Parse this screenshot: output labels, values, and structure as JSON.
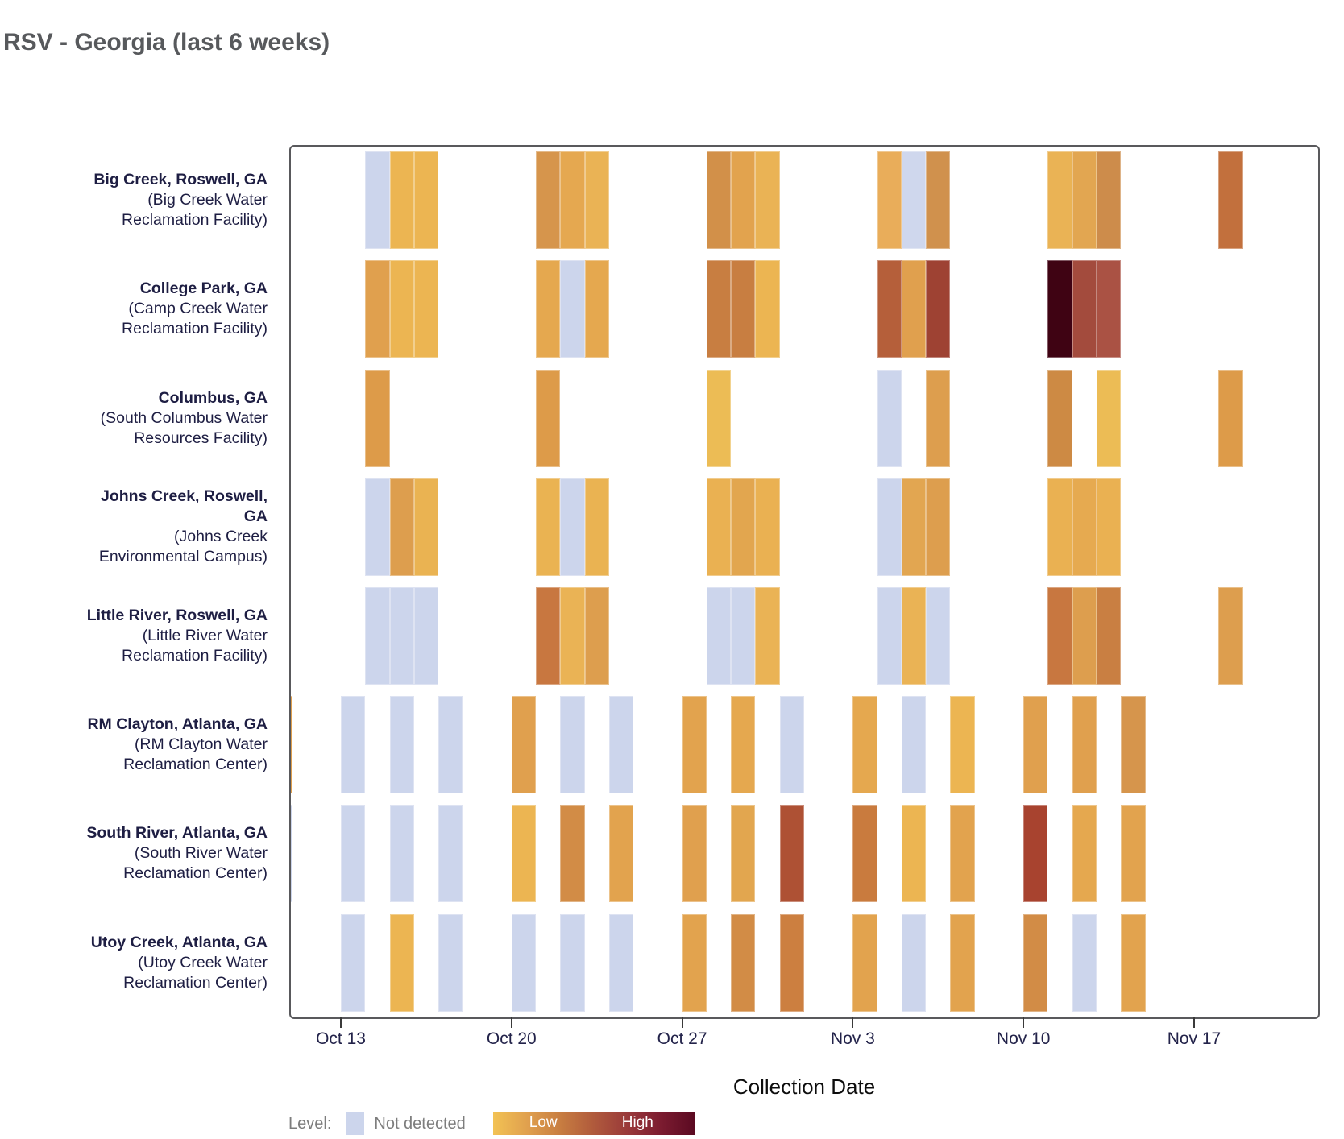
{
  "title": "RSV - Georgia (last 6 weeks)",
  "axis": {
    "x_title": "Collection Date",
    "x_ticks": [
      {
        "label": "Oct 13",
        "day": 0
      },
      {
        "label": "Oct 20",
        "day": 7
      },
      {
        "label": "Oct 27",
        "day": 14
      },
      {
        "label": "Nov 3",
        "day": 21
      },
      {
        "label": "Nov 10",
        "day": 28
      },
      {
        "label": "Nov 17",
        "day": 35
      }
    ]
  },
  "legend": {
    "label": "Level:",
    "not_detected_label": "Not detected",
    "not_detected_color": "#ccd5ec",
    "low_label": "Low",
    "high_label": "High",
    "gradient": [
      "#f2c254",
      "#e0a04e",
      "#c87e41",
      "#b05a3c",
      "#99393a",
      "#7c1c30",
      "#5b0a22"
    ]
  },
  "chart_data": {
    "type": "heatmap",
    "title": "RSV - Georgia (last 6 weeks)",
    "xlabel": "Collection Date",
    "x_range_days": [
      -2,
      40
    ],
    "grid": false,
    "legend_position": "bottom",
    "rows": [
      {
        "site": "Big Creek, Roswell, GA",
        "facility": "(Big Creek Water Reclamation Facility)",
        "tiles": [
          {
            "date": "Oct 14",
            "day": 1,
            "level": "not_detected",
            "color": "#ccd5ec"
          },
          {
            "date": "Oct 15",
            "day": 2,
            "level": "low",
            "color": "#ecb552"
          },
          {
            "date": "Oct 16",
            "day": 3,
            "level": "low",
            "color": "#ecb552"
          },
          {
            "date": "Oct 21",
            "day": 8,
            "level": "medium",
            "color": "#d6954c"
          },
          {
            "date": "Oct 22",
            "day": 9,
            "level": "low",
            "color": "#e5a850"
          },
          {
            "date": "Oct 23",
            "day": 10,
            "level": "low",
            "color": "#eab355"
          },
          {
            "date": "Oct 28",
            "day": 15,
            "level": "medium",
            "color": "#d29049"
          },
          {
            "date": "Oct 29",
            "day": 16,
            "level": "low",
            "color": "#e2a34e"
          },
          {
            "date": "Oct 30",
            "day": 17,
            "level": "low",
            "color": "#eab355"
          },
          {
            "date": "Nov 4",
            "day": 22,
            "level": "low",
            "color": "#e9ad5a"
          },
          {
            "date": "Nov 5",
            "day": 23,
            "level": "not_detected",
            "color": "#cfd7ed"
          },
          {
            "date": "Nov 6",
            "day": 24,
            "level": "medium",
            "color": "#d0914d"
          },
          {
            "date": "Nov 11",
            "day": 29,
            "level": "low",
            "color": "#eab355"
          },
          {
            "date": "Nov 12",
            "day": 30,
            "level": "low",
            "color": "#e2a651"
          },
          {
            "date": "Nov 13",
            "day": 31,
            "level": "medium",
            "color": "#cd8c4b"
          },
          {
            "date": "Nov 18",
            "day": 36,
            "level": "medium",
            "color": "#c2703d"
          }
        ]
      },
      {
        "site": "College Park, GA",
        "facility": "(Camp Creek Water Reclamation Facility)",
        "tiles": [
          {
            "date": "Oct 14",
            "day": 1,
            "level": "low",
            "color": "#e0a04e"
          },
          {
            "date": "Oct 15",
            "day": 2,
            "level": "low",
            "color": "#ecb552"
          },
          {
            "date": "Oct 16",
            "day": 3,
            "level": "low",
            "color": "#ecb552"
          },
          {
            "date": "Oct 21",
            "day": 8,
            "level": "low",
            "color": "#e5a84f"
          },
          {
            "date": "Oct 22",
            "day": 9,
            "level": "not_detected",
            "color": "#ccd5ec"
          },
          {
            "date": "Oct 23",
            "day": 10,
            "level": "low",
            "color": "#e5a84f"
          },
          {
            "date": "Oct 28",
            "day": 15,
            "level": "medium",
            "color": "#c87e41"
          },
          {
            "date": "Oct 29",
            "day": 16,
            "level": "medium",
            "color": "#c87e41"
          },
          {
            "date": "Oct 30",
            "day": 17,
            "level": "low",
            "color": "#ecb552"
          },
          {
            "date": "Nov 4",
            "day": 22,
            "level": "medium",
            "color": "#b55f3a"
          },
          {
            "date": "Nov 5",
            "day": 23,
            "level": "low",
            "color": "#e0a04e"
          },
          {
            "date": "Nov 6",
            "day": 24,
            "level": "high",
            "color": "#9e4233"
          },
          {
            "date": "Nov 11",
            "day": 29,
            "level": "very_high",
            "color": "#3f0313"
          },
          {
            "date": "Nov 12",
            "day": 30,
            "level": "high",
            "color": "#a34b3d"
          },
          {
            "date": "Nov 13",
            "day": 31,
            "level": "high",
            "color": "#aa5244"
          }
        ]
      },
      {
        "site": "Columbus, GA",
        "facility": "(South Columbus Water Resources Facility)",
        "tiles": [
          {
            "date": "Oct 14",
            "day": 1,
            "level": "low",
            "color": "#dd9b49"
          },
          {
            "date": "Oct 21",
            "day": 8,
            "level": "low",
            "color": "#dd9b49"
          },
          {
            "date": "Oct 28",
            "day": 15,
            "level": "low",
            "color": "#ecbc55"
          },
          {
            "date": "Nov 4",
            "day": 22,
            "level": "not_detected",
            "color": "#ccd5ec"
          },
          {
            "date": "Nov 6",
            "day": 24,
            "level": "low",
            "color": "#dd9e4e"
          },
          {
            "date": "Nov 11",
            "day": 29,
            "level": "medium",
            "color": "#cd8a44"
          },
          {
            "date": "Nov 13",
            "day": 31,
            "level": "low",
            "color": "#ecbc55"
          },
          {
            "date": "Nov 18",
            "day": 36,
            "level": "low",
            "color": "#dd9b49"
          }
        ]
      },
      {
        "site": "Johns Creek, Roswell, GA",
        "facility": "(Johns Creek Environmental Campus)",
        "tiles": [
          {
            "date": "Oct 14",
            "day": 1,
            "level": "not_detected",
            "color": "#ccd5ec"
          },
          {
            "date": "Oct 15",
            "day": 2,
            "level": "low",
            "color": "#dd9e4e"
          },
          {
            "date": "Oct 16",
            "day": 3,
            "level": "low",
            "color": "#eab352"
          },
          {
            "date": "Oct 21",
            "day": 8,
            "level": "low",
            "color": "#eab352"
          },
          {
            "date": "Oct 22",
            "day": 9,
            "level": "not_detected",
            "color": "#ccd5ec"
          },
          {
            "date": "Oct 23",
            "day": 10,
            "level": "low",
            "color": "#eab352"
          },
          {
            "date": "Oct 28",
            "day": 15,
            "level": "low",
            "color": "#eab152"
          },
          {
            "date": "Oct 29",
            "day": 16,
            "level": "low",
            "color": "#e2a64f"
          },
          {
            "date": "Oct 30",
            "day": 17,
            "level": "low",
            "color": "#eab152"
          },
          {
            "date": "Nov 4",
            "day": 22,
            "level": "not_detected",
            "color": "#ccd5ec"
          },
          {
            "date": "Nov 5",
            "day": 23,
            "level": "low",
            "color": "#e2a651"
          },
          {
            "date": "Nov 6",
            "day": 24,
            "level": "low",
            "color": "#dd9e4e"
          },
          {
            "date": "Nov 11",
            "day": 29,
            "level": "low",
            "color": "#eab152"
          },
          {
            "date": "Nov 12",
            "day": 30,
            "level": "low",
            "color": "#e6aa50"
          },
          {
            "date": "Nov 13",
            "day": 31,
            "level": "low",
            "color": "#eab152"
          }
        ]
      },
      {
        "site": "Little River, Roswell, GA",
        "facility": "(Little River Water Reclamation Facility)",
        "tiles": [
          {
            "date": "Oct 14",
            "day": 1,
            "level": "not_detected",
            "color": "#ccd5ec"
          },
          {
            "date": "Oct 15",
            "day": 2,
            "level": "not_detected",
            "color": "#ccd5ec"
          },
          {
            "date": "Oct 16",
            "day": 3,
            "level": "not_detected",
            "color": "#ccd5ec"
          },
          {
            "date": "Oct 21",
            "day": 8,
            "level": "medium",
            "color": "#c87740"
          },
          {
            "date": "Oct 22",
            "day": 9,
            "level": "low",
            "color": "#eab355"
          },
          {
            "date": "Oct 23",
            "day": 10,
            "level": "low",
            "color": "#dd9e4e"
          },
          {
            "date": "Oct 28",
            "day": 15,
            "level": "not_detected",
            "color": "#ccd5ec"
          },
          {
            "date": "Oct 29",
            "day": 16,
            "level": "not_detected",
            "color": "#ccd5ec"
          },
          {
            "date": "Oct 30",
            "day": 17,
            "level": "low",
            "color": "#eab355"
          },
          {
            "date": "Nov 4",
            "day": 22,
            "level": "not_detected",
            "color": "#ccd5ec"
          },
          {
            "date": "Nov 5",
            "day": 23,
            "level": "low",
            "color": "#eab355"
          },
          {
            "date": "Nov 6",
            "day": 24,
            "level": "not_detected",
            "color": "#ccd5ec"
          },
          {
            "date": "Nov 11",
            "day": 29,
            "level": "medium",
            "color": "#c87740"
          },
          {
            "date": "Nov 12",
            "day": 30,
            "level": "low",
            "color": "#dd9e4e"
          },
          {
            "date": "Nov 13",
            "day": 31,
            "level": "medium",
            "color": "#c97f42"
          },
          {
            "date": "Nov 18",
            "day": 36,
            "level": "low",
            "color": "#dd9e4e"
          }
        ]
      },
      {
        "site": "RM Clayton, Atlanta, GA",
        "facility": "(RM Clayton Water Reclamation Center)",
        "tiles": [
          {
            "date": "Oct 10",
            "day": -3,
            "level": "low",
            "color": "#e0a04e"
          },
          {
            "date": "Oct 13",
            "day": 0,
            "level": "not_detected",
            "color": "#ccd5ec"
          },
          {
            "date": "Oct 15",
            "day": 2,
            "level": "not_detected",
            "color": "#ccd5ec"
          },
          {
            "date": "Oct 17",
            "day": 4,
            "level": "not_detected",
            "color": "#ccd5ec"
          },
          {
            "date": "Oct 20",
            "day": 7,
            "level": "low",
            "color": "#e0a04e"
          },
          {
            "date": "Oct 22",
            "day": 9,
            "level": "not_detected",
            "color": "#ccd5ec"
          },
          {
            "date": "Oct 24",
            "day": 11,
            "level": "not_detected",
            "color": "#ccd5ec"
          },
          {
            "date": "Oct 27",
            "day": 14,
            "level": "low",
            "color": "#e2a34e"
          },
          {
            "date": "Oct 29",
            "day": 16,
            "level": "low",
            "color": "#e5a84f"
          },
          {
            "date": "Oct 31",
            "day": 18,
            "level": "not_detected",
            "color": "#ccd5ec"
          },
          {
            "date": "Nov 3",
            "day": 21,
            "level": "low",
            "color": "#e5a84f"
          },
          {
            "date": "Nov 5",
            "day": 23,
            "level": "not_detected",
            "color": "#ccd5ec"
          },
          {
            "date": "Nov 7",
            "day": 25,
            "level": "low",
            "color": "#ecb552"
          },
          {
            "date": "Nov 10",
            "day": 28,
            "level": "low",
            "color": "#e0a04e"
          },
          {
            "date": "Nov 12",
            "day": 30,
            "level": "low",
            "color": "#e0a04e"
          },
          {
            "date": "Nov 14",
            "day": 32,
            "level": "medium",
            "color": "#d6954c"
          }
        ]
      },
      {
        "site": "South River, Atlanta, GA",
        "facility": "(South River Water Reclamation Center)",
        "tiles": [
          {
            "date": "Oct 10",
            "day": -3,
            "level": "not_detected",
            "color": "#ccd5ec"
          },
          {
            "date": "Oct 13",
            "day": 0,
            "level": "not_detected",
            "color": "#ccd5ec"
          },
          {
            "date": "Oct 15",
            "day": 2,
            "level": "not_detected",
            "color": "#ccd5ec"
          },
          {
            "date": "Oct 17",
            "day": 4,
            "level": "not_detected",
            "color": "#ccd5ec"
          },
          {
            "date": "Oct 20",
            "day": 7,
            "level": "low",
            "color": "#ecb552"
          },
          {
            "date": "Oct 22",
            "day": 9,
            "level": "medium",
            "color": "#d28c46"
          },
          {
            "date": "Oct 24",
            "day": 11,
            "level": "low",
            "color": "#e2a34e"
          },
          {
            "date": "Oct 27",
            "day": 14,
            "level": "low",
            "color": "#e0a04e"
          },
          {
            "date": "Oct 29",
            "day": 16,
            "level": "low",
            "color": "#e2a64f"
          },
          {
            "date": "Oct 31",
            "day": 18,
            "level": "high",
            "color": "#ae5134"
          },
          {
            "date": "Nov 3",
            "day": 21,
            "level": "medium",
            "color": "#c97b3e"
          },
          {
            "date": "Nov 5",
            "day": 23,
            "level": "low",
            "color": "#ecb552"
          },
          {
            "date": "Nov 7",
            "day": 25,
            "level": "low",
            "color": "#e2a34e"
          },
          {
            "date": "Nov 10",
            "day": 28,
            "level": "high",
            "color": "#a8432f"
          },
          {
            "date": "Nov 12",
            "day": 30,
            "level": "low",
            "color": "#e5a84f"
          },
          {
            "date": "Nov 14",
            "day": 32,
            "level": "low",
            "color": "#e2a34e"
          }
        ]
      },
      {
        "site": "Utoy Creek, Atlanta, GA",
        "facility": "(Utoy Creek Water Reclamation Center)",
        "tiles": [
          {
            "date": "Oct 13",
            "day": 0,
            "level": "not_detected",
            "color": "#ccd5ec"
          },
          {
            "date": "Oct 15",
            "day": 2,
            "level": "low",
            "color": "#ecb552"
          },
          {
            "date": "Oct 17",
            "day": 4,
            "level": "not_detected",
            "color": "#ccd5ec"
          },
          {
            "date": "Oct 20",
            "day": 7,
            "level": "not_detected",
            "color": "#ccd5ec"
          },
          {
            "date": "Oct 22",
            "day": 9,
            "level": "not_detected",
            "color": "#ccd5ec"
          },
          {
            "date": "Oct 24",
            "day": 11,
            "level": "not_detected",
            "color": "#ccd5ec"
          },
          {
            "date": "Oct 27",
            "day": 14,
            "level": "low",
            "color": "#e2a34e"
          },
          {
            "date": "Oct 29",
            "day": 16,
            "level": "medium",
            "color": "#d28c46"
          },
          {
            "date": "Oct 31",
            "day": 18,
            "level": "medium",
            "color": "#cc7f40"
          },
          {
            "date": "Nov 3",
            "day": 21,
            "level": "low",
            "color": "#e2a34e"
          },
          {
            "date": "Nov 5",
            "day": 23,
            "level": "not_detected",
            "color": "#ccd5ec"
          },
          {
            "date": "Nov 7",
            "day": 25,
            "level": "low",
            "color": "#e2a34e"
          },
          {
            "date": "Nov 10",
            "day": 28,
            "level": "medium",
            "color": "#d28c46"
          },
          {
            "date": "Nov 12",
            "day": 30,
            "level": "not_detected",
            "color": "#ccd5ec"
          },
          {
            "date": "Nov 14",
            "day": 32,
            "level": "low",
            "color": "#e2a34e"
          }
        ]
      }
    ]
  }
}
